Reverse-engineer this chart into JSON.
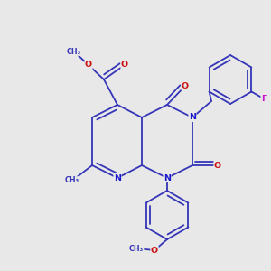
{
  "bg": "#e8e8e8",
  "bc": "#3535b8",
  "Nc": "#1a1acc",
  "Oc": "#cc1010",
  "Fc": "#cc10cc",
  "lw": 1.3,
  "fs": 6.8,
  "figsize": [
    3.0,
    3.0
  ],
  "dpi": 100,
  "xlim": [
    0,
    300
  ],
  "ylim": [
    0,
    300
  ]
}
